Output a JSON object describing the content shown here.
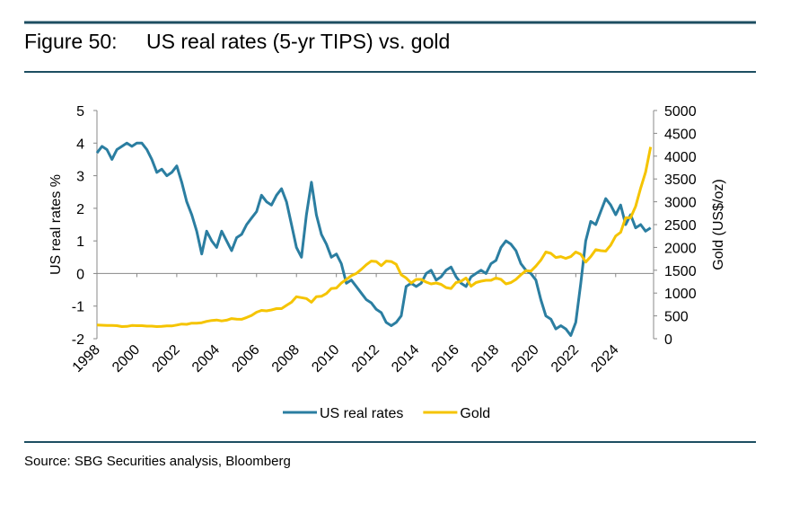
{
  "chart_data": {
    "type": "line",
    "figure_label": "Figure 50:",
    "title": "US real rates (5-yr TIPS) vs. gold",
    "ylabel": "US real rates %",
    "y2label": "Gold (US$/oz)",
    "source": "Source: SBG Securities analysis, Bloomberg",
    "xlim": [
      1998,
      2025.9
    ],
    "xticks": [
      1998,
      2000,
      2002,
      2004,
      2006,
      2008,
      2010,
      2012,
      2014,
      2016,
      2018,
      2020,
      2022,
      2024
    ],
    "ylim": [
      -2,
      5
    ],
    "yticks": [
      -2,
      -1,
      0,
      1,
      2,
      3,
      4,
      5
    ],
    "y2lim": [
      0,
      5000
    ],
    "y2ticks": [
      0,
      500,
      1000,
      1500,
      2000,
      2500,
      3000,
      3500,
      4000,
      4500,
      5000
    ],
    "legend": "bottom",
    "x": [
      1998,
      1998.25,
      1998.5,
      1998.75,
      1999,
      1999.25,
      1999.5,
      1999.75,
      2000,
      2000.25,
      2000.5,
      2000.75,
      2001,
      2001.25,
      2001.5,
      2001.75,
      2002,
      2002.25,
      2002.5,
      2002.75,
      2003,
      2003.25,
      2003.5,
      2003.75,
      2004,
      2004.25,
      2004.5,
      2004.75,
      2005,
      2005.25,
      2005.5,
      2005.75,
      2006,
      2006.25,
      2006.5,
      2006.75,
      2007,
      2007.25,
      2007.5,
      2007.75,
      2008,
      2008.25,
      2008.5,
      2008.75,
      2009,
      2009.25,
      2009.5,
      2009.75,
      2010,
      2010.25,
      2010.5,
      2010.75,
      2011,
      2011.25,
      2011.5,
      2011.75,
      2012,
      2012.25,
      2012.5,
      2012.75,
      2013,
      2013.25,
      2013.5,
      2013.75,
      2014,
      2014.25,
      2014.5,
      2014.75,
      2015,
      2015.25,
      2015.5,
      2015.75,
      2016,
      2016.25,
      2016.5,
      2016.75,
      2017,
      2017.25,
      2017.5,
      2017.75,
      2018,
      2018.25,
      2018.5,
      2018.75,
      2019,
      2019.25,
      2019.5,
      2019.75,
      2020,
      2020.25,
      2020.5,
      2020.75,
      2021,
      2021.25,
      2021.5,
      2021.75,
      2022,
      2022.25,
      2022.5,
      2022.75,
      2023,
      2023.25,
      2023.5,
      2023.75,
      2024,
      2024.25,
      2024.5,
      2024.75,
      2025,
      2025.25,
      2025.5,
      2025.75
    ],
    "series": [
      {
        "name": "US real rates",
        "color": "#2b7ea1",
        "axis": "y",
        "values": [
          3.7,
          3.9,
          3.8,
          3.5,
          3.8,
          3.9,
          4.0,
          3.9,
          4.0,
          4.0,
          3.8,
          3.5,
          3.1,
          3.2,
          3.0,
          3.1,
          3.3,
          2.8,
          2.2,
          1.8,
          1.3,
          0.6,
          1.3,
          1.0,
          0.8,
          1.3,
          1.0,
          0.7,
          1.1,
          1.2,
          1.5,
          1.7,
          1.9,
          2.4,
          2.2,
          2.1,
          2.4,
          2.6,
          2.2,
          1.5,
          0.8,
          0.5,
          1.8,
          2.8,
          1.8,
          1.2,
          0.9,
          0.5,
          0.6,
          0.3,
          -0.3,
          -0.2,
          -0.4,
          -0.6,
          -0.8,
          -0.9,
          -1.1,
          -1.2,
          -1.5,
          -1.6,
          -1.5,
          -1.3,
          -0.4,
          -0.3,
          -0.4,
          -0.3,
          0.0,
          0.1,
          -0.2,
          -0.1,
          0.1,
          0.2,
          -0.1,
          -0.3,
          -0.4,
          -0.1,
          0.0,
          0.1,
          0.0,
          0.3,
          0.4,
          0.8,
          1.0,
          0.9,
          0.7,
          0.3,
          0.1,
          0.0,
          -0.2,
          -0.8,
          -1.3,
          -1.4,
          -1.7,
          -1.6,
          -1.7,
          -1.9,
          -1.5,
          -0.3,
          1.0,
          1.6,
          1.5,
          1.9,
          2.3,
          2.1,
          1.8,
          2.1,
          1.5,
          1.8,
          1.4,
          1.5,
          1.3,
          1.4
        ]
      },
      {
        "name": "Gold",
        "color": "#f5c400",
        "axis": "y2",
        "values": [
          300,
          295,
          290,
          290,
          285,
          265,
          270,
          290,
          285,
          285,
          275,
          275,
          265,
          270,
          280,
          280,
          300,
          320,
          315,
          340,
          340,
          350,
          380,
          400,
          410,
          390,
          405,
          440,
          430,
          425,
          465,
          510,
          580,
          620,
          610,
          630,
          660,
          660,
          730,
          800,
          920,
          900,
          880,
          800,
          920,
          930,
          990,
          1100,
          1110,
          1220,
          1300,
          1380,
          1430,
          1520,
          1620,
          1700,
          1690,
          1600,
          1700,
          1690,
          1630,
          1400,
          1330,
          1220,
          1300,
          1300,
          1240,
          1200,
          1220,
          1190,
          1120,
          1100,
          1230,
          1260,
          1330,
          1150,
          1230,
          1260,
          1280,
          1280,
          1330,
          1300,
          1200,
          1230,
          1300,
          1400,
          1490,
          1480,
          1590,
          1720,
          1900,
          1870,
          1780,
          1800,
          1760,
          1800,
          1900,
          1850,
          1680,
          1800,
          1950,
          1930,
          1920,
          2050,
          2250,
          2330,
          2650,
          2650,
          2900,
          3300,
          3650,
          4200
        ]
      }
    ]
  }
}
